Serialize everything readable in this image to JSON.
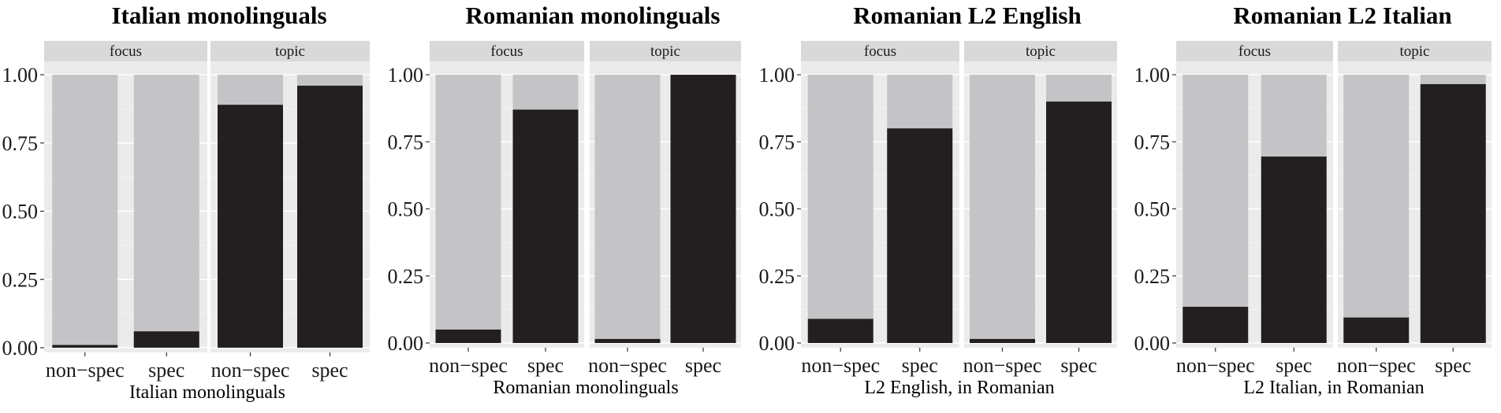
{
  "colors": {
    "background": "#ffffff",
    "strip": "#d9d9d9",
    "panel_bg": "#ebebeb",
    "grid": "#ffffff",
    "series_dark": "#231f20",
    "series_light": "#c4c4c6"
  },
  "chart_data": [
    {
      "type": "bar",
      "title": "Italian monolinguals",
      "xlabel": "Italian monolinguals",
      "ylabel": "",
      "ylim": [
        0,
        1
      ],
      "yticks": [
        "0.00",
        "0.25",
        "0.50",
        "0.75",
        "1.00"
      ],
      "stacked": true,
      "facets": [
        {
          "label": "focus",
          "categories": [
            "non−spec",
            "spec"
          ],
          "values": [
            0.01,
            0.06
          ]
        },
        {
          "label": "topic",
          "categories": [
            "non−spec",
            "spec"
          ],
          "values": [
            0.89,
            0.96
          ]
        }
      ]
    },
    {
      "type": "bar",
      "title": "Romanian monolinguals",
      "xlabel": "Romanian monolinguals",
      "ylabel": "",
      "ylim": [
        0,
        1
      ],
      "yticks": [
        "0.00",
        "0.25",
        "0.50",
        "0.75",
        "1.00"
      ],
      "stacked": true,
      "facets": [
        {
          "label": "focus",
          "categories": [
            "non−spec",
            "spec"
          ],
          "values": [
            0.05,
            0.87
          ]
        },
        {
          "label": "topic",
          "categories": [
            "non−spec",
            "spec"
          ],
          "values": [
            0.015,
            1.0
          ]
        }
      ]
    },
    {
      "type": "bar",
      "title": "Romanian L2 English",
      "xlabel": "L2 English, in Romanian",
      "ylabel": "",
      "ylim": [
        0,
        1
      ],
      "yticks": [
        "0.00",
        "0.25",
        "0.50",
        "0.75",
        "1.00"
      ],
      "stacked": true,
      "facets": [
        {
          "label": "focus",
          "categories": [
            "non−spec",
            "spec"
          ],
          "values": [
            0.09,
            0.8
          ]
        },
        {
          "label": "topic",
          "categories": [
            "non−spec",
            "spec"
          ],
          "values": [
            0.015,
            0.9
          ]
        }
      ]
    },
    {
      "type": "bar",
      "title": "Romanian L2 Italian",
      "xlabel": "L2 Italian, in Romanian",
      "ylabel": "",
      "ylim": [
        0,
        1
      ],
      "yticks": [
        "0.00",
        "0.25",
        "0.50",
        "0.75",
        "1.00"
      ],
      "stacked": true,
      "facets": [
        {
          "label": "focus",
          "categories": [
            "non−spec",
            "spec"
          ],
          "values": [
            0.135,
            0.695
          ]
        },
        {
          "label": "topic",
          "categories": [
            "non−spec",
            "spec"
          ],
          "values": [
            0.095,
            0.965
          ]
        }
      ]
    }
  ]
}
